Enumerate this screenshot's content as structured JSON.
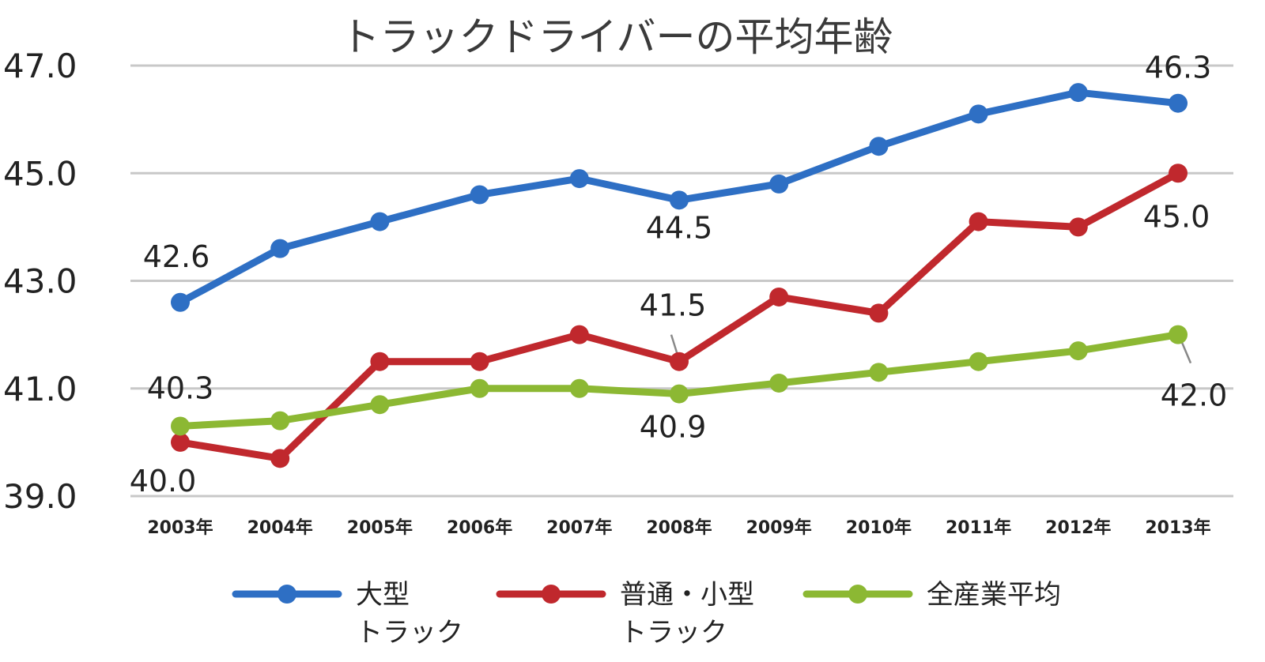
{
  "chart_data": {
    "type": "line",
    "title": "トラックドライバーの平均年齢",
    "categories": [
      "2003年",
      "2004年",
      "2005年",
      "2006年",
      "2007年",
      "2008年",
      "2009年",
      "2010年",
      "2011年",
      "2012年",
      "2013年"
    ],
    "ylim": [
      39,
      47
    ],
    "yticks": [
      "39.0",
      "41.0",
      "43.0",
      "45.0",
      "47.0"
    ],
    "grid": true,
    "legend_position": "bottom",
    "series": [
      {
        "name": "大型 トラック",
        "legend_lines": [
          "大型",
          "トラック"
        ],
        "color": "#2e6fc4",
        "values": [
          42.6,
          43.6,
          44.1,
          44.6,
          44.9,
          44.5,
          44.8,
          45.5,
          46.1,
          46.5,
          46.3
        ]
      },
      {
        "name": "普通・小型 トラック",
        "legend_lines": [
          "普通・小型",
          "トラック"
        ],
        "color": "#c0282d",
        "values": [
          40.0,
          39.7,
          41.5,
          41.5,
          42.0,
          41.5,
          42.7,
          42.4,
          44.1,
          44.0,
          45.0
        ]
      },
      {
        "name": "全産業平均",
        "legend_lines": [
          "全産業平均"
        ],
        "color": "#8cb833",
        "values": [
          40.3,
          40.4,
          40.7,
          41.0,
          41.0,
          40.9,
          41.1,
          41.3,
          41.5,
          41.7,
          42.0
        ]
      }
    ],
    "data_labels": [
      {
        "series": 0,
        "index": 0,
        "text": "42.6"
      },
      {
        "series": 0,
        "index": 5,
        "text": "44.5"
      },
      {
        "series": 0,
        "index": 10,
        "text": "46.3"
      },
      {
        "series": 1,
        "index": 0,
        "text": "40.0"
      },
      {
        "series": 1,
        "index": 5,
        "text": "41.5"
      },
      {
        "series": 1,
        "index": 10,
        "text": "45.0"
      },
      {
        "series": 2,
        "index": 0,
        "text": "40.3"
      },
      {
        "series": 2,
        "index": 5,
        "text": "40.9"
      },
      {
        "series": 2,
        "index": 10,
        "text": "42.0"
      }
    ]
  }
}
